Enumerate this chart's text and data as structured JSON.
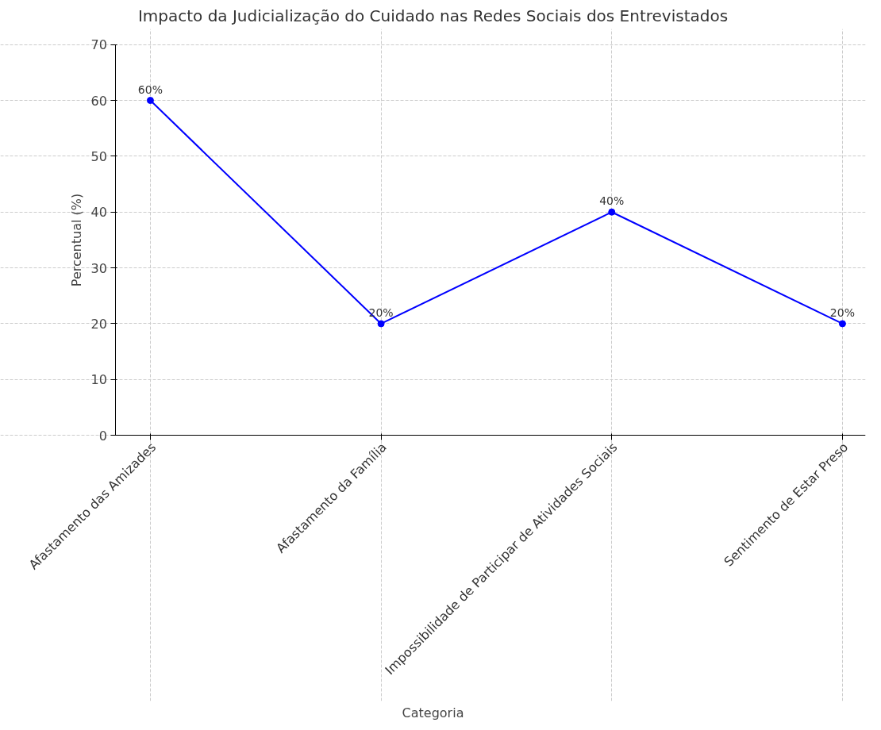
{
  "chart_data": {
    "type": "line",
    "title": "Impacto da Judicialização do Cuidado nas Redes Sociais dos Entrevistados",
    "xlabel": "Categoria",
    "ylabel": "Percentual (%)",
    "categories": [
      "Afastamento das Amizades",
      "Afastamento da Família",
      "Impossibilidade de Participar de Atividades Sociais",
      "Sentimento de Estar Preso"
    ],
    "series": [
      {
        "color": "#0000ff",
        "values": [
          60,
          20,
          40,
          20
        ],
        "value_labels": [
          "60%",
          "20%",
          "40%",
          "20%"
        ]
      }
    ],
    "ylim": [
      0,
      70
    ],
    "yticks": [
      0,
      10,
      20,
      30,
      40,
      50,
      60,
      70
    ],
    "grid": true,
    "marker": "circle",
    "line_style": "solid"
  }
}
